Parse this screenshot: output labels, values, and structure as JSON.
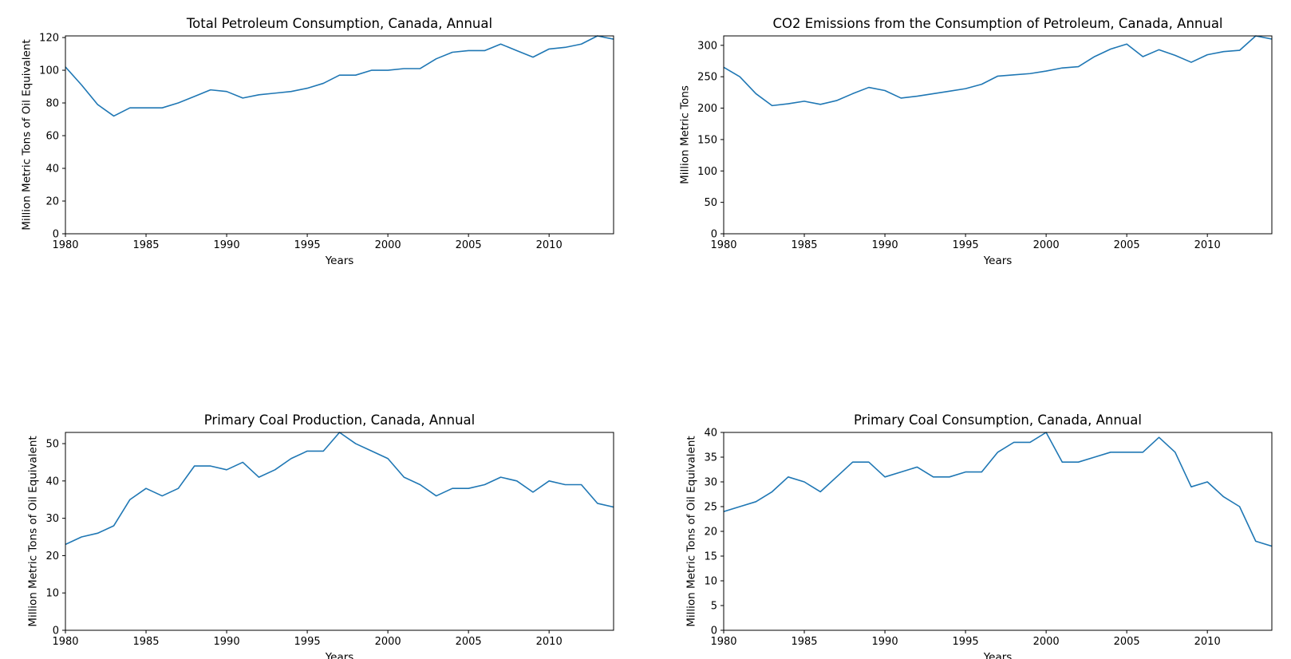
{
  "chart_data": [
    {
      "type": "line",
      "title": "Total Petroleum Consumption, Canada, Annual",
      "xlabel": "Years",
      "ylabel": "Million Metric Tons of Oil Equivalent",
      "xlim": [
        1980,
        2014
      ],
      "ylim": [
        0,
        121
      ],
      "xticks": [
        1980,
        1985,
        1990,
        1995,
        2000,
        2005,
        2010
      ],
      "yticks": [
        0,
        20,
        40,
        60,
        80,
        100,
        120
      ],
      "grid": false,
      "series_color": "#1f77b4",
      "series": [
        {
          "x": [
            1980,
            1981,
            1982,
            1983,
            1984,
            1985,
            1986,
            1987,
            1988,
            1989,
            1990,
            1991,
            1992,
            1993,
            1994,
            1995,
            1996,
            1997,
            1998,
            1999,
            2000,
            2001,
            2002,
            2003,
            2004,
            2005,
            2006,
            2007,
            2008,
            2009,
            2010,
            2011,
            2012,
            2013,
            2014
          ],
          "values": [
            102,
            91,
            79,
            72,
            77,
            77,
            77,
            80,
            84,
            88,
            87,
            83,
            85,
            86,
            87,
            89,
            92,
            97,
            97,
            100,
            100,
            101,
            101,
            107,
            111,
            112,
            112,
            116,
            112,
            108,
            113,
            114,
            116,
            121,
            119
          ]
        }
      ]
    },
    {
      "type": "line",
      "title": "CO2 Emissions from the Consumption of Petroleum, Canada, Annual",
      "xlabel": "Years",
      "ylabel": "Million Metric Tons",
      "xlim": [
        1980,
        2014
      ],
      "ylim": [
        0,
        315
      ],
      "xticks": [
        1980,
        1985,
        1990,
        1995,
        2000,
        2005,
        2010
      ],
      "yticks": [
        0,
        50,
        100,
        150,
        200,
        250,
        300
      ],
      "grid": false,
      "series_color": "#1f77b4",
      "series": [
        {
          "x": [
            1980,
            1981,
            1982,
            1983,
            1984,
            1985,
            1986,
            1987,
            1988,
            1989,
            1990,
            1991,
            1992,
            1993,
            1994,
            1995,
            1996,
            1997,
            1998,
            1999,
            2000,
            2001,
            2002,
            2003,
            2004,
            2005,
            2006,
            2007,
            2008,
            2009,
            2010,
            2011,
            2012,
            2013,
            2014
          ],
          "values": [
            265,
            250,
            223,
            204,
            207,
            211,
            206,
            212,
            223,
            233,
            228,
            216,
            219,
            223,
            227,
            231,
            238,
            251,
            253,
            255,
            259,
            264,
            266,
            282,
            294,
            302,
            282,
            293,
            284,
            273,
            285,
            290,
            292,
            315,
            310
          ]
        }
      ]
    },
    {
      "type": "line",
      "title": "Primary Coal Production, Canada, Annual",
      "xlabel": "Years",
      "ylabel": "Million Metric Tons of Oil Equivalent",
      "xlim": [
        1980,
        2014
      ],
      "ylim": [
        0,
        53
      ],
      "xticks": [
        1980,
        1985,
        1990,
        1995,
        2000,
        2005,
        2010
      ],
      "yticks": [
        0,
        10,
        20,
        30,
        40,
        50
      ],
      "grid": false,
      "series_color": "#1f77b4",
      "series": [
        {
          "x": [
            1980,
            1981,
            1982,
            1983,
            1984,
            1985,
            1986,
            1987,
            1988,
            1989,
            1990,
            1991,
            1992,
            1993,
            1994,
            1995,
            1996,
            1997,
            1998,
            1999,
            2000,
            2001,
            2002,
            2003,
            2004,
            2005,
            2006,
            2007,
            2008,
            2009,
            2010,
            2011,
            2012,
            2013,
            2014
          ],
          "values": [
            23,
            25,
            26,
            28,
            35,
            38,
            36,
            38,
            44,
            44,
            43,
            45,
            41,
            43,
            46,
            48,
            48,
            53,
            50,
            48,
            46,
            41,
            39,
            36,
            38,
            38,
            39,
            41,
            40,
            37,
            40,
            39,
            39,
            34,
            33
          ]
        }
      ]
    },
    {
      "type": "line",
      "title": "Primary Coal Consumption, Canada, Annual",
      "xlabel": "Years",
      "ylabel": "Million Metric Tons of Oil Equivalent",
      "xlim": [
        1980,
        2014
      ],
      "ylim": [
        0,
        40
      ],
      "xticks": [
        1980,
        1985,
        1990,
        1995,
        2000,
        2005,
        2010
      ],
      "yticks": [
        0,
        5,
        10,
        15,
        20,
        25,
        30,
        35,
        40
      ],
      "grid": false,
      "series_color": "#1f77b4",
      "series": [
        {
          "x": [
            1980,
            1981,
            1982,
            1983,
            1984,
            1985,
            1986,
            1987,
            1988,
            1989,
            1990,
            1991,
            1992,
            1993,
            1994,
            1995,
            1996,
            1997,
            1998,
            1999,
            2000,
            2001,
            2002,
            2003,
            2004,
            2005,
            2006,
            2007,
            2008,
            2009,
            2010,
            2011,
            2012,
            2013,
            2014
          ],
          "values": [
            24,
            25,
            26,
            28,
            31,
            30,
            28,
            31,
            34,
            34,
            31,
            32,
            33,
            31,
            31,
            32,
            32,
            36,
            38,
            38,
            40,
            34,
            34,
            35,
            36,
            36,
            36,
            39,
            36,
            29,
            30,
            27,
            25,
            18,
            17
          ]
        }
      ]
    }
  ]
}
